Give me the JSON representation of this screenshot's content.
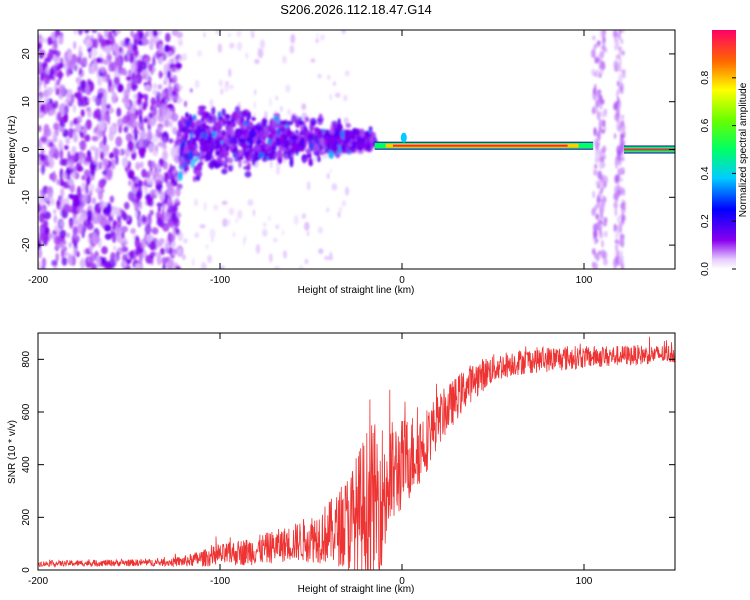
{
  "title": "S206.2026.112.18.47.G14",
  "chart_data": [
    {
      "type": "heatmap",
      "xlabel": "Height of straight line (km)",
      "ylabel": "Frequency (Hz)",
      "xlim": [
        -200,
        150
      ],
      "ylim": [
        -25,
        25
      ],
      "xticks": [
        -200,
        -100,
        0,
        100
      ],
      "yticks": [
        -20,
        -10,
        0,
        10,
        20
      ],
      "xtick_labels": [
        "-200",
        "-100",
        "0",
        "100"
      ],
      "ytick_labels": [
        "-20",
        "-10",
        "0",
        "10",
        "20"
      ],
      "colorbar": {
        "label": "Normalized spectral amplitude",
        "range": [
          0,
          1
        ],
        "ticks": [
          0,
          0.2,
          0.4,
          0.6,
          0.8
        ],
        "tick_labels": [
          "0.0",
          "0.2",
          "0.4",
          "0.6",
          "0.8"
        ]
      },
      "features": [
        {
          "name": "noise-region",
          "x_range": [
            -200,
            -122
          ],
          "freq_range": [
            -25,
            25
          ],
          "amplitude": 0.12
        },
        {
          "name": "scatter-region",
          "x_range": [
            -122,
            -15
          ],
          "freq_center": 2,
          "amplitude": 0.2
        },
        {
          "name": "tone-line",
          "x_range": [
            -15,
            105
          ],
          "freq": 0.8,
          "amplitude": 0.9
        },
        {
          "name": "gap-noise-1",
          "x_range": [
            105,
            112
          ],
          "amplitude": 0.05
        },
        {
          "name": "gap-noise-2",
          "x_range": [
            117,
            122
          ],
          "amplitude": 0.05
        },
        {
          "name": "tone-line-2",
          "x_range": [
            122,
            150
          ],
          "freq": 0,
          "amplitude": 0.85
        }
      ]
    },
    {
      "type": "line",
      "xlabel": "Height of straight line (km)",
      "ylabel": "SNR (10 * v/v)",
      "xlim": [
        -200,
        150
      ],
      "ylim": [
        0,
        900
      ],
      "xticks": [
        -200,
        -100,
        0,
        100
      ],
      "yticks": [
        0,
        200,
        400,
        600,
        800
      ],
      "xtick_labels": [
        "-200",
        "-100",
        "0",
        "100"
      ],
      "ytick_labels": [
        "0",
        "200",
        "400",
        "600",
        "800"
      ],
      "color": "#ee3333",
      "envelope": {
        "x": [
          -200,
          -160,
          -130,
          -120,
          -100,
          -80,
          -60,
          -45,
          -35,
          -25,
          -18,
          -12,
          -8,
          -5,
          0,
          5,
          10,
          13,
          16,
          20,
          25,
          30,
          35,
          40,
          45,
          50,
          60,
          70,
          80,
          90,
          100,
          110,
          120,
          130,
          140,
          150
        ],
        "base": [
          25,
          28,
          30,
          35,
          60,
          80,
          110,
          140,
          170,
          220,
          280,
          300,
          350,
          380,
          420,
          450,
          480,
          500,
          540,
          580,
          620,
          660,
          700,
          730,
          750,
          770,
          790,
          800,
          805,
          810,
          812,
          815,
          818,
          820,
          822,
          825
        ],
        "spread": [
          15,
          18,
          20,
          30,
          60,
          80,
          100,
          150,
          200,
          350,
          450,
          400,
          380,
          300,
          250,
          230,
          200,
          180,
          160,
          140,
          130,
          120,
          110,
          100,
          90,
          80,
          70,
          70,
          70,
          70,
          60,
          60,
          55,
          55,
          50,
          50
        ]
      }
    }
  ]
}
